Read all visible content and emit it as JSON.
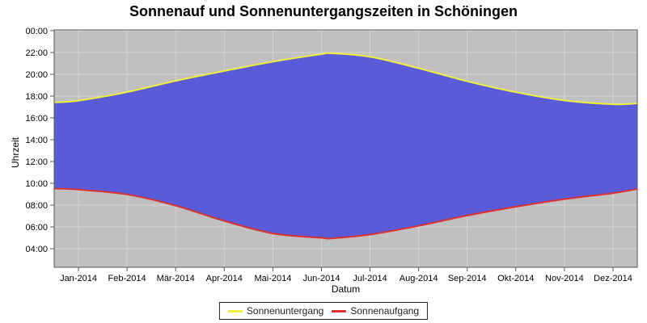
{
  "title": "Sonnenauf und Sonnenuntergangszeiten in Schöningen",
  "colors": {
    "plot_background": "#C0C0C0",
    "grid": "#D6D6D6",
    "plot_border": "#545454",
    "area_fill": "#5A5BD8",
    "sunset_line": "#EFEF3E",
    "sunrise_line": "#DC3030",
    "text": "#000000",
    "legend_background": "#FFFFFF",
    "legend_border": "#222222"
  },
  "legend": {
    "items": [
      {
        "label": "Sonnenuntergang",
        "color": "#EFEF3E"
      },
      {
        "label": "Sonnenaufgang",
        "color": "#DC3030"
      }
    ]
  },
  "chart_data": {
    "type": "area",
    "title": "Sonnenauf und Sonnenuntergangszeiten in Schöningen",
    "xlabel": "Datum",
    "ylabel": "Uhrzeit",
    "grid": true,
    "legend_position": "bottom-center",
    "x_tick_labels": [
      "Jan-2014",
      "Feb-2014",
      "Mär-2014",
      "Apr-2014",
      "Mai-2014",
      "Jun-2014",
      "Jul-2014",
      "Aug-2014",
      "Sep-2014",
      "Okt-2014",
      "Nov-2014",
      "Dez-2014"
    ],
    "y_tick_labels": [
      "00:00",
      "22:00",
      "20:00",
      "18:00",
      "16:00",
      "14:00",
      "12:00",
      "10:00",
      "08:00",
      "06:00",
      "04:00"
    ],
    "y_axis": {
      "unit": "hours",
      "min": 2.3,
      "max": 24.07,
      "tick_hours": [
        24,
        22,
        20,
        18,
        16,
        14,
        12,
        10,
        8,
        6,
        4
      ]
    },
    "x_axis": {
      "range_months": [
        0,
        12
      ],
      "note": "ticks centered mid-month, data spans 1 Jan 2014 to 31 Dec 2014"
    },
    "series": [
      {
        "name": "Sonnenuntergang",
        "color": "#EFEF3E",
        "monthly_times": [
          "17:35",
          "18:22",
          "19:24",
          "20:18",
          "21:09",
          "21:51",
          "21:36",
          "20:33",
          "19:21",
          "18:21",
          "17:36",
          "17:15"
        ],
        "points_month_hour": [
          [
            0,
            17.42
          ],
          [
            0.5,
            17.58
          ],
          [
            1.5,
            18.37
          ],
          [
            2.5,
            19.4
          ],
          [
            3.5,
            20.3
          ],
          [
            4.5,
            21.15
          ],
          [
            5.5,
            21.85
          ],
          [
            5.7,
            21.92
          ],
          [
            6.5,
            21.6
          ],
          [
            7.5,
            20.55
          ],
          [
            8.5,
            19.35
          ],
          [
            9.5,
            18.35
          ],
          [
            10.5,
            17.6
          ],
          [
            11.5,
            17.25
          ],
          [
            12,
            17.33
          ]
        ]
      },
      {
        "name": "Sonnenaufgang",
        "color": "#DC3030",
        "monthly_times": [
          "09:25",
          "08:59",
          "07:57",
          "06:33",
          "05:24",
          "05:00",
          "05:18",
          "06:06",
          "07:03",
          "07:51",
          "08:33",
          "09:06"
        ],
        "points_month_hour": [
          [
            0,
            9.52
          ],
          [
            0.5,
            9.42
          ],
          [
            1.5,
            8.98
          ],
          [
            2.5,
            7.95
          ],
          [
            3.5,
            6.55
          ],
          [
            4.5,
            5.4
          ],
          [
            5.5,
            5.0
          ],
          [
            5.7,
            4.95
          ],
          [
            6.5,
            5.3
          ],
          [
            7.5,
            6.1
          ],
          [
            8.5,
            7.05
          ],
          [
            9.5,
            7.85
          ],
          [
            10.5,
            8.55
          ],
          [
            11.5,
            9.1
          ],
          [
            12,
            9.48
          ]
        ]
      }
    ],
    "extremes": {
      "latest_sunset": "≈21:55 (Ende Juni)",
      "earliest_sunrise": "≈04:57 (Ende Juni)"
    }
  }
}
